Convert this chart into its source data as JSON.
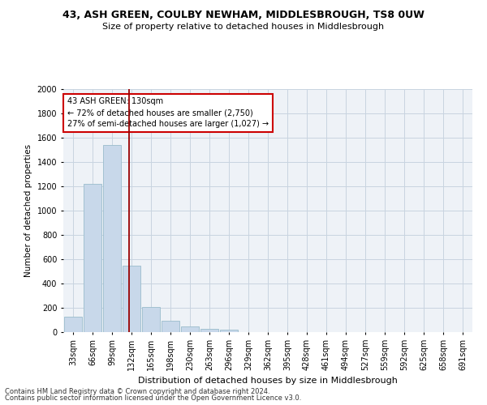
{
  "title1": "43, ASH GREEN, COULBY NEWHAM, MIDDLESBROUGH, TS8 0UW",
  "title2": "Size of property relative to detached houses in Middlesbrough",
  "xlabel": "Distribution of detached houses by size in Middlesbrough",
  "ylabel": "Number of detached properties",
  "footnote1": "Contains HM Land Registry data © Crown copyright and database right 2024.",
  "footnote2": "Contains public sector information licensed under the Open Government Licence v3.0.",
  "annotation_title": "43 ASH GREEN: 130sqm",
  "annotation_line1": "← 72% of detached houses are smaller (2,750)",
  "annotation_line2": "27% of semi-detached houses are larger (1,027) →",
  "bin_labels": [
    "33sqm",
    "66sqm",
    "99sqm",
    "132sqm",
    "165sqm",
    "198sqm",
    "230sqm",
    "263sqm",
    "296sqm",
    "329sqm",
    "362sqm",
    "395sqm",
    "428sqm",
    "461sqm",
    "494sqm",
    "527sqm",
    "559sqm",
    "592sqm",
    "625sqm",
    "658sqm",
    "691sqm"
  ],
  "bar_values": [
    130,
    1220,
    1540,
    550,
    210,
    95,
    45,
    28,
    18,
    0,
    0,
    0,
    0,
    0,
    0,
    0,
    0,
    0,
    0,
    0,
    0
  ],
  "bar_color": "#c8d8ea",
  "bar_edge_color": "#9abccc",
  "vline_color": "#990000",
  "vline_x": 2.87,
  "ylim": [
    0,
    2000
  ],
  "yticks": [
    0,
    200,
    400,
    600,
    800,
    1000,
    1200,
    1400,
    1600,
    1800,
    2000
  ],
  "annotation_box_facecolor": "#ffffff",
  "annotation_box_edgecolor": "#cc0000",
  "grid_color": "#c8d4e0",
  "bg_color": "#eef2f7",
  "title1_fontsize": 9,
  "title2_fontsize": 8,
  "xlabel_fontsize": 8,
  "ylabel_fontsize": 7.5,
  "tick_fontsize": 7,
  "annotation_fontsize": 7,
  "footnote_fontsize": 6
}
